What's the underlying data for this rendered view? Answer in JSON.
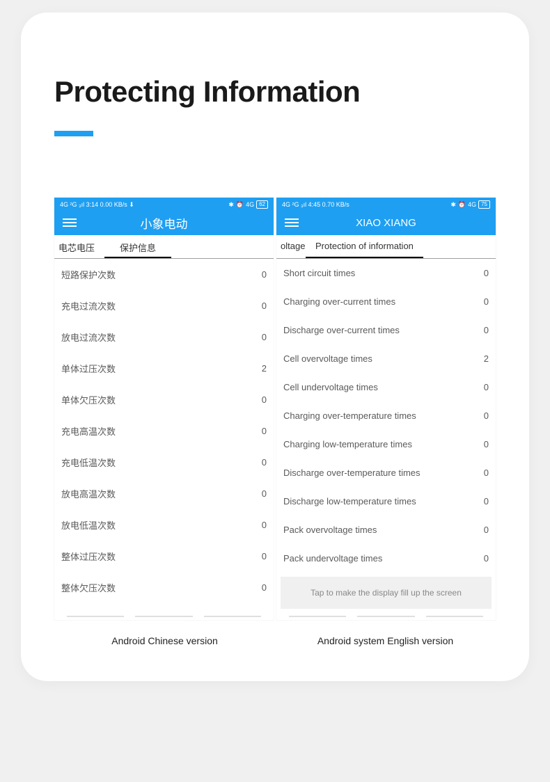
{
  "page": {
    "heading": "Protecting Information",
    "accent_color": "#1e9ff2",
    "caption_cn": "Android Chinese version",
    "caption_en": "Android system English version"
  },
  "phone_cn": {
    "status_left": "4G ²G ₃ıl 3:14 0.00 KB/s ⬇",
    "status_bt": "✱",
    "status_alarm": "⏰",
    "status_net": "4G",
    "status_batt": "62",
    "app_title": "小象电动",
    "tab_left": "电芯电压",
    "tab_active": "保护信息",
    "rows": [
      {
        "label": "短路保护次数",
        "value": "0"
      },
      {
        "label": "充电过流次数",
        "value": "0"
      },
      {
        "label": "放电过流次数",
        "value": "0"
      },
      {
        "label": "单体过压次数",
        "value": "2"
      },
      {
        "label": "单体欠压次数",
        "value": "0"
      },
      {
        "label": "充电高温次数",
        "value": "0"
      },
      {
        "label": "充电低温次数",
        "value": "0"
      },
      {
        "label": "放电高温次数",
        "value": "0"
      },
      {
        "label": "放电低温次数",
        "value": "0"
      },
      {
        "label": "整体过压次数",
        "value": "0"
      },
      {
        "label": "整体欠压次数",
        "value": "0"
      }
    ]
  },
  "phone_en": {
    "status_left": "4G ²G ₃ıl 4:45 0.70 KB/s",
    "status_bt": "✱",
    "status_alarm": "⏰",
    "status_net": "4G",
    "status_batt": "75",
    "app_title": "XIAO XIANG",
    "tab_left": "oltage",
    "tab_active": "Protection of information",
    "rows": [
      {
        "label": "Short circuit times",
        "value": "0"
      },
      {
        "label": "Charging over-current times",
        "value": "0"
      },
      {
        "label": "Discharge over-current times",
        "value": "0"
      },
      {
        "label": "Cell overvoltage times",
        "value": "2"
      },
      {
        "label": "Cell undervoltage times",
        "value": "0"
      },
      {
        "label": "Charging over-temperature times",
        "value": "0"
      },
      {
        "label": "Charging low-temperature times",
        "value": "0"
      },
      {
        "label": "Discharge over-temperature times",
        "value": "0"
      },
      {
        "label": "Discharge low-temperature times",
        "value": "0"
      },
      {
        "label": "Pack overvoltage times",
        "value": "0"
      },
      {
        "label": "Pack undervoltage times",
        "value": "0"
      }
    ],
    "hint": "Tap to make the display fill up the screen"
  }
}
